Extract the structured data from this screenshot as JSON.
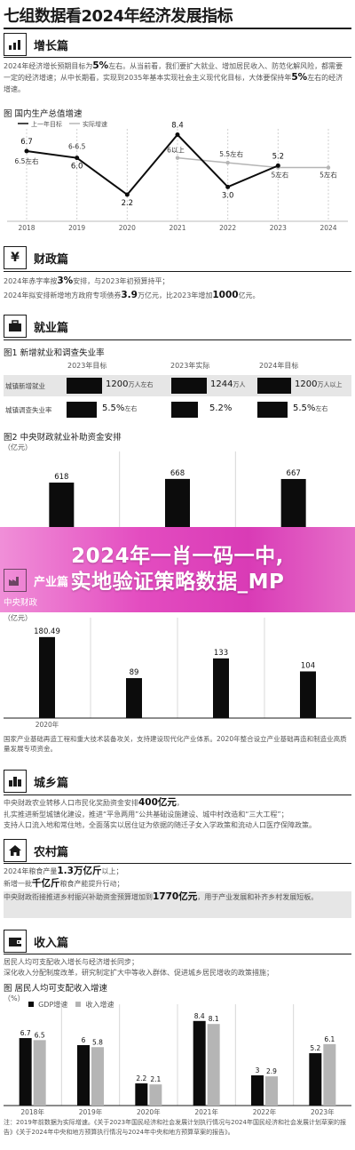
{
  "page_title": "七组数据看2024年经济发展指标",
  "sections": {
    "growth": {
      "title": "增长篇",
      "text_pre": "2024年经济增长预期目标为",
      "text_bold": "5%",
      "text_post": "左右。从当前看，我们要扩大就业、增加居民收入、防范化解风险，都需要一定的经济增速；从中长期看，实现到2035年基本实现社会主义现代化目标，大体要保持年",
      "text_bold2": "5%",
      "text_end": "左右的经济增速。",
      "fig_title": "图 国内生产总值增速",
      "legend": [
        "上一年目标",
        "实际增速"
      ]
    },
    "fiscal": {
      "title": "财政篇",
      "line1_pre": "2024年赤字率按",
      "line1_bold": "3%",
      "line1_post": "安排，与2023年初预算持平；",
      "line2_pre": "2024年拟安排新增地方政府专项债券",
      "line2_bold": "3.9",
      "line2_mid": "万亿元，比2023年增加",
      "line2_bold2": "1000",
      "line2_post": "亿元。"
    },
    "employment": {
      "title": "就业篇",
      "fig1_title": "图1 新增就业和调查失业率",
      "col_headers": [
        "2023年目标",
        "2023年实际",
        "2024年目标"
      ],
      "rows": [
        {
          "label": "城镇新增就业",
          "values": [
            {
              "num": "1200",
              "unit": "万人左右"
            },
            {
              "num": "1244",
              "unit": "万人"
            },
            {
              "num": "1200",
              "unit": "万人以上"
            }
          ]
        },
        {
          "label": "城镇调查失业率",
          "values": [
            {
              "num": "5.5%",
              "unit": "左右"
            },
            {
              "num": "5.2%",
              "unit": ""
            },
            {
              "num": "5.5%",
              "unit": "左右"
            }
          ]
        }
      ],
      "fig2_title": "图2 中央财政就业补助资金安排",
      "fig2_unit": "（亿元）"
    },
    "banner": {
      "line1": "2024年一肖一码一中,",
      "line2": "实地验证策略数据_MP"
    },
    "industry": {
      "title": "产业篇",
      "fig_title": "中央财政",
      "unit": "（亿元）",
      "note": "国家产业基础再造工程和重大技术装备攻关，支持建设现代化产业体系。2020年整合设立产业基础再造和制造业高质量发展专项资金。"
    },
    "urban": {
      "title": "城乡篇",
      "line1_pre": "中央财政农业转移人口市民化奖励资金安排",
      "line1_bold": "400亿元",
      "line1_post": "，",
      "line2": "扎实推进新型城镇化建设，推进“平急两用”公共基础设施建设、城中村改造和“三大工程”；",
      "line3": "支持人口流入地和常住地，全面落实以居住证为依据的随迁子女入学政策和流动人口医疗保障政策。"
    },
    "rural": {
      "title": "农村篇",
      "line1_pre": "2024年粮食产量",
      "line1_bold": "1.3万亿斤",
      "line1_post": "以上；",
      "line2_pre": "新增一批",
      "line2_bold": "千亿斤",
      "line2_post": "粮食产能提升行动；",
      "line3_pre": "中央财政衔接推进乡村振兴补助资金预算增加到",
      "line3_bold": "1770亿元",
      "line3_post": "，用于产业发展和补齐乡村发展短板。"
    },
    "income": {
      "title": "收入篇",
      "line1": "居民人均可支配收入增长与经济增长同步；",
      "line2": "深化收入分配制度改革，研究制定扩大中等收入群体、促进城乡居民增收的政策措施；",
      "fig_title": "图 居民人均可支配收入增速",
      "unit": "（%）",
      "legend": [
        "GDP增速",
        "收入增速"
      ],
      "footnote": "注：2019年前数据为实际增速。《关于2023年国民经济和社会发展计划执行情况与2024年国民经济和社会发展计划草案的报告》《关于2024年中央和地方预算执行情况与2024年中央和地方预算草案的报告》。"
    }
  },
  "chart_data": [
    {
      "type": "line",
      "title": "图 国内生产总值增速",
      "categories": [
        "2018",
        "2019",
        "2020",
        "2021",
        "2022",
        "2023",
        "2024"
      ],
      "series": [
        {
          "name": "上一年目标",
          "values": [
            6.5,
            6.0,
            null,
            6.0,
            5.5,
            5.0,
            5.0
          ],
          "labels": [
            "6.5左右",
            "6-6.5",
            "",
            "6以上",
            "5.5左右",
            "5左右",
            "5左右"
          ]
        },
        {
          "name": "实际增速",
          "values": [
            6.7,
            6.0,
            2.2,
            8.4,
            3.0,
            5.2,
            null
          ],
          "labels": [
            "6.7",
            "6.0",
            "2.2",
            "8.4",
            "3.0",
            "5.2",
            ""
          ]
        }
      ],
      "ylim": [
        0,
        9
      ]
    },
    {
      "type": "bar",
      "title": "图2 中央财政就业补助资金安排",
      "categories": [
        "",
        "",
        ""
      ],
      "values": [
        618,
        668,
        667
      ],
      "ylabel": "（亿元）",
      "ylim": [
        0,
        800
      ]
    },
    {
      "type": "bar",
      "title": "产业篇 中央财政",
      "categories": [
        "2020年",
        "",
        "",
        ""
      ],
      "values": [
        180.49,
        89,
        133,
        104
      ],
      "ylabel": "（亿元）",
      "ylim": [
        0,
        200
      ]
    },
    {
      "type": "bar",
      "title": "图 居民人均可支配收入增速",
      "categories": [
        "2018年",
        "2019年",
        "2020年",
        "2021年",
        "2022年",
        "2023年"
      ],
      "series": [
        {
          "name": "GDP增速",
          "values": [
            6.7,
            6.0,
            2.2,
            8.4,
            3.0,
            5.2
          ]
        },
        {
          "name": "收入增速",
          "values": [
            6.5,
            5.8,
            2.1,
            8.1,
            2.9,
            6.1
          ]
        }
      ],
      "ylabel": "（%）",
      "ylim": [
        0,
        9
      ]
    }
  ],
  "colors": {
    "ink": "#0c0c0c",
    "gray_series": "#b5b5b5",
    "banner_pink": "#e34cc0",
    "table_shade": "#e6e6e6"
  },
  "icons": {
    "growth": "bar-chart-icon",
    "fiscal": "money-icon",
    "employment": "briefcase-icon",
    "industry": "factory-icon",
    "urban": "city-icon",
    "rural": "house-icon",
    "income": "wallet-icon"
  }
}
